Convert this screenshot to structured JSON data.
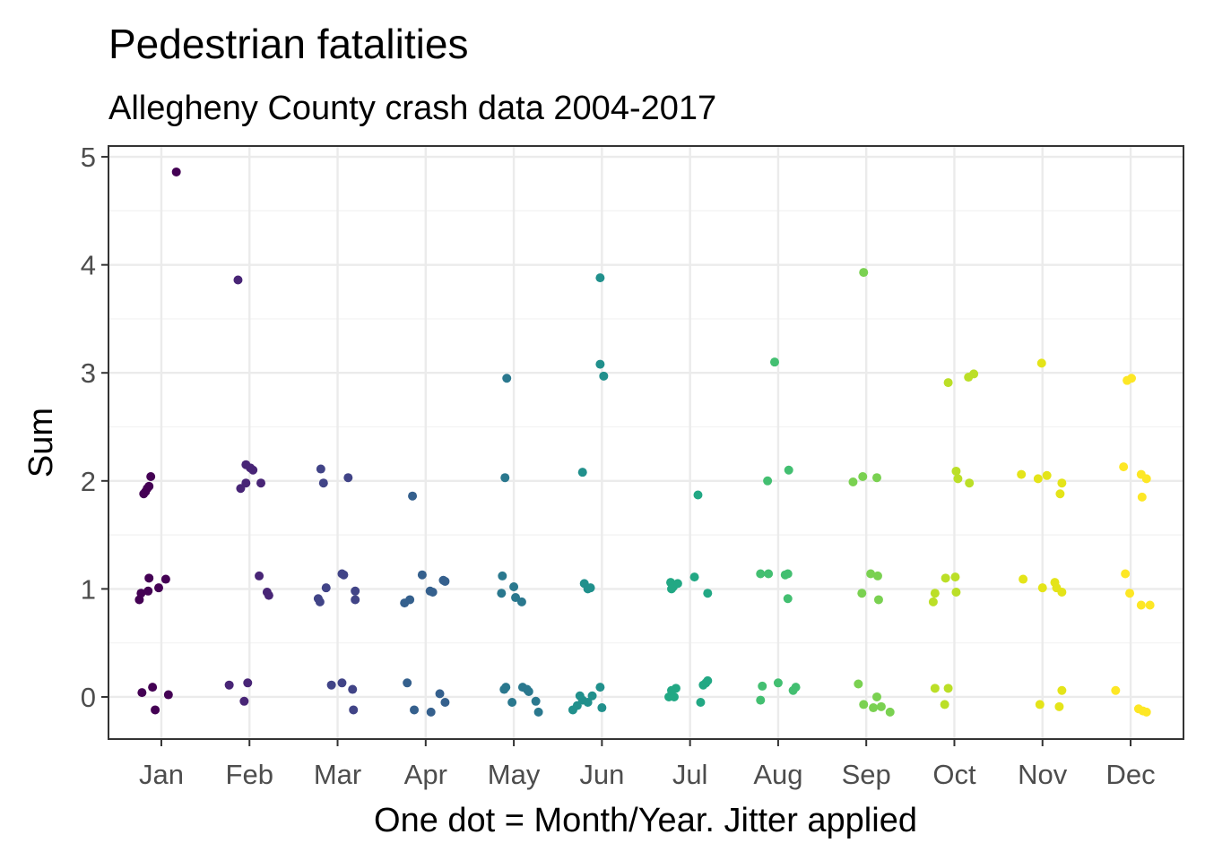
{
  "chart_data": {
    "type": "scatter",
    "title": "Pedestrian fatalities",
    "subtitle": "Allegheny County crash data 2004-2017",
    "xlabel": "One dot = Month/Year. Jitter applied",
    "ylabel": "Sum",
    "categories": [
      "Jan",
      "Feb",
      "Mar",
      "Apr",
      "May",
      "Jun",
      "Jul",
      "Aug",
      "Sep",
      "Oct",
      "Nov",
      "Dec"
    ],
    "yticks": [
      "0",
      "1",
      "2",
      "3",
      "4",
      "5"
    ],
    "xlim": [
      0.4,
      12.6
    ],
    "ylim": [
      -0.39,
      5.1
    ],
    "grid": true,
    "colors": [
      "#440154",
      "#482576",
      "#414487",
      "#35608D",
      "#2A788E",
      "#21908C",
      "#22A884",
      "#43BF71",
      "#7AD151",
      "#BBDF27",
      "#E4E419",
      "#FDE725"
    ],
    "points": [
      [
        [
          0.78,
          0.04
        ],
        [
          1.08,
          0.02
        ],
        [
          0.9,
          0.09
        ],
        [
          0.93,
          -0.12
        ],
        [
          0.86,
          1.1
        ],
        [
          0.75,
          0.9
        ],
        [
          0.77,
          0.96
        ],
        [
          0.85,
          0.98
        ],
        [
          0.97,
          1.01
        ],
        [
          1.05,
          1.09
        ],
        [
          0.8,
          1.88
        ],
        [
          0.82,
          1.9
        ],
        [
          0.84,
          1.93
        ],
        [
          0.86,
          1.95
        ],
        [
          0.88,
          2.04
        ],
        [
          1.17,
          4.86
        ]
      ],
      [
        [
          1.77,
          0.11
        ],
        [
          1.98,
          0.13
        ],
        [
          1.94,
          -0.04
        ],
        [
          2.11,
          1.12
        ],
        [
          2.2,
          0.97
        ],
        [
          2.22,
          0.94
        ],
        [
          1.9,
          1.93
        ],
        [
          1.96,
          1.98
        ],
        [
          1.96,
          2.15
        ],
        [
          2.01,
          2.12
        ],
        [
          2.04,
          2.1
        ],
        [
          2.13,
          1.98
        ],
        [
          1.87,
          3.86
        ]
      ],
      [
        [
          2.93,
          0.11
        ],
        [
          3.05,
          0.13
        ],
        [
          3.17,
          0.07
        ],
        [
          3.18,
          -0.12
        ],
        [
          2.78,
          0.91
        ],
        [
          2.8,
          0.88
        ],
        [
          2.87,
          1.01
        ],
        [
          3.07,
          1.13
        ],
        [
          3.05,
          1.14
        ],
        [
          3.2,
          0.98
        ],
        [
          3.2,
          0.9
        ],
        [
          2.81,
          2.11
        ],
        [
          2.84,
          1.98
        ],
        [
          3.12,
          2.03
        ]
      ],
      [
        [
          3.79,
          0.13
        ],
        [
          3.87,
          -0.12
        ],
        [
          4.06,
          -0.14
        ],
        [
          4.16,
          0.03
        ],
        [
          4.22,
          -0.05
        ],
        [
          3.76,
          0.87
        ],
        [
          3.82,
          0.9
        ],
        [
          3.96,
          1.13
        ],
        [
          4.05,
          0.98
        ],
        [
          4.08,
          0.97
        ],
        [
          4.2,
          1.08
        ],
        [
          4.22,
          1.07
        ],
        [
          3.85,
          1.86
        ]
      ],
      [
        [
          4.89,
          0.07
        ],
        [
          4.91,
          0.09
        ],
        [
          4.98,
          -0.05
        ],
        [
          5.1,
          0.09
        ],
        [
          5.15,
          0.07
        ],
        [
          5.17,
          0.05
        ],
        [
          5.25,
          -0.04
        ],
        [
          5.28,
          -0.14
        ],
        [
          4.87,
          1.12
        ],
        [
          4.86,
          0.96
        ],
        [
          5.0,
          1.02
        ],
        [
          5.02,
          0.92
        ],
        [
          5.09,
          0.88
        ],
        [
          4.9,
          2.03
        ],
        [
          4.92,
          2.95
        ]
      ],
      [
        [
          5.67,
          -0.12
        ],
        [
          5.72,
          -0.08
        ],
        [
          5.75,
          0.01
        ],
        [
          5.84,
          -0.05
        ],
        [
          5.78,
          -0.03
        ],
        [
          5.89,
          0.01
        ],
        [
          5.98,
          0.09
        ],
        [
          6.0,
          -0.1
        ],
        [
          5.8,
          1.05
        ],
        [
          5.87,
          1.01
        ],
        [
          5.84,
          1.0
        ],
        [
          5.78,
          2.08
        ],
        [
          5.98,
          3.08
        ],
        [
          6.02,
          2.97
        ],
        [
          5.98,
          3.88
        ]
      ],
      [
        [
          6.76,
          0.0
        ],
        [
          6.82,
          0.0
        ],
        [
          6.84,
          0.08
        ],
        [
          6.79,
          0.06
        ],
        [
          7.12,
          -0.05
        ],
        [
          7.15,
          0.11
        ],
        [
          7.18,
          0.13
        ],
        [
          7.2,
          0.15
        ],
        [
          6.78,
          1.06
        ],
        [
          6.81,
          1.02
        ],
        [
          6.86,
          1.05
        ],
        [
          6.79,
          1.0
        ],
        [
          7.05,
          1.11
        ],
        [
          7.2,
          0.96
        ],
        [
          7.09,
          1.87
        ]
      ],
      [
        [
          7.82,
          0.1
        ],
        [
          7.8,
          -0.03
        ],
        [
          8.0,
          0.13
        ],
        [
          8.17,
          0.06
        ],
        [
          8.2,
          0.09
        ],
        [
          7.8,
          1.14
        ],
        [
          7.89,
          1.14
        ],
        [
          8.08,
          1.13
        ],
        [
          8.11,
          1.14
        ],
        [
          8.11,
          0.91
        ],
        [
          7.88,
          2.0
        ],
        [
          8.12,
          2.1
        ],
        [
          7.96,
          3.1
        ]
      ],
      [
        [
          8.91,
          0.12
        ],
        [
          8.97,
          -0.07
        ],
        [
          9.12,
          0.0
        ],
        [
          9.08,
          -0.1
        ],
        [
          9.17,
          -0.09
        ],
        [
          9.27,
          -0.14
        ],
        [
          8.85,
          1.99
        ],
        [
          8.96,
          2.04
        ],
        [
          9.12,
          2.03
        ],
        [
          9.05,
          1.14
        ],
        [
          9.13,
          1.12
        ],
        [
          8.95,
          0.96
        ],
        [
          9.14,
          0.9
        ],
        [
          8.97,
          3.93
        ]
      ],
      [
        [
          9.78,
          0.08
        ],
        [
          9.93,
          0.08
        ],
        [
          9.89,
          -0.07
        ],
        [
          9.78,
          0.96
        ],
        [
          9.76,
          0.88
        ],
        [
          9.9,
          1.1
        ],
        [
          10.01,
          1.11
        ],
        [
          10.02,
          0.97
        ],
        [
          10.02,
          2.09
        ],
        [
          10.04,
          2.02
        ],
        [
          10.17,
          1.98
        ],
        [
          9.93,
          2.91
        ],
        [
          10.16,
          2.96
        ],
        [
          10.22,
          2.99
        ]
      ],
      [
        [
          10.97,
          -0.07
        ],
        [
          11.19,
          -0.09
        ],
        [
          11.22,
          0.06
        ],
        [
          10.78,
          1.09
        ],
        [
          11.0,
          1.01
        ],
        [
          11.14,
          1.06
        ],
        [
          11.16,
          1.01
        ],
        [
          11.22,
          0.97
        ],
        [
          10.76,
          2.06
        ],
        [
          10.95,
          2.02
        ],
        [
          11.05,
          2.05
        ],
        [
          11.22,
          1.98
        ],
        [
          11.2,
          1.88
        ],
        [
          10.99,
          3.09
        ]
      ],
      [
        [
          11.83,
          0.06
        ],
        [
          11.92,
          2.13
        ],
        [
          11.94,
          1.14
        ],
        [
          11.99,
          0.96
        ],
        [
          12.01,
          2.95
        ],
        [
          11.96,
          2.93
        ],
        [
          12.09,
          -0.11
        ],
        [
          12.14,
          -0.13
        ],
        [
          12.18,
          -0.14
        ],
        [
          12.12,
          0.85
        ],
        [
          12.22,
          0.85
        ],
        [
          12.12,
          2.06
        ],
        [
          12.18,
          2.02
        ],
        [
          12.13,
          1.85
        ]
      ]
    ]
  }
}
